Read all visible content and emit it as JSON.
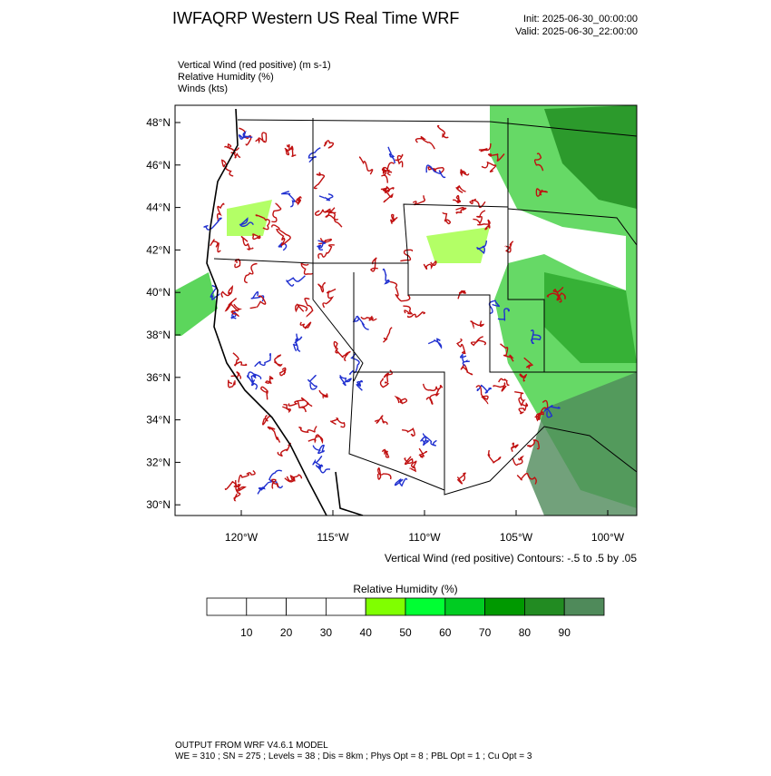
{
  "header": {
    "title": "IWFAQRP Western US Real Time WRF",
    "init": "Init: 2025-06-30_00:00:00",
    "valid": "Valid: 2025-06-30_22:00:00"
  },
  "fields": [
    "Vertical Wind (red positive)   (m s-1)",
    "Relative Humidity   (%)",
    "Winds   (kts)"
  ],
  "map": {
    "lat_labels": [
      "48°N",
      "46°N",
      "44°N",
      "42°N",
      "40°N",
      "38°N",
      "36°N",
      "34°N",
      "32°N",
      "30°N"
    ],
    "lon_labels": [
      "120°W",
      "115°W",
      "110°W",
      "105°W",
      "100°W"
    ],
    "contour_note": "Vertical Wind (red positive) Contours: -.5 to .5 by .05"
  },
  "colorbar": {
    "title": "Relative Humidity  (%)",
    "labels": [
      "10",
      "20",
      "30",
      "40",
      "50",
      "60",
      "70",
      "80",
      "90"
    ],
    "colors": [
      "#ffffff",
      "#ffffff",
      "#ffffff",
      "#ffffff",
      "#80ff00",
      "#00ff33",
      "#00cc22",
      "#009900",
      "#228b22",
      "#4f8a5a"
    ]
  },
  "footer": [
    "OUTPUT FROM WRF V4.6.1 MODEL",
    "WE = 310 ; SN = 275 ; Levels = 38 ; Dis = 8km ; Phys Opt = 8 ; PBL Opt = 1 ; Cu Opt = 3"
  ]
}
